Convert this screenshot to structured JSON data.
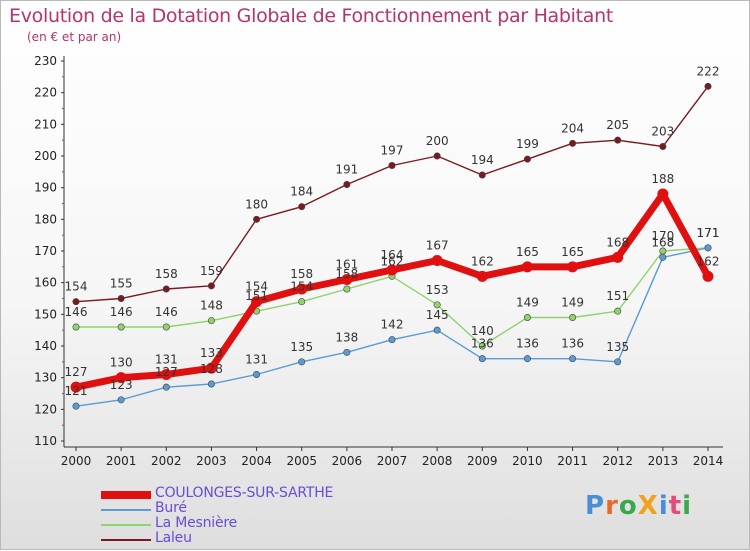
{
  "header": {
    "title": "Evolution de la Dotation Globale de Fonctionnement par Habitant",
    "subtitle": "(en € et par an)"
  },
  "colors": {
    "title": "#b5336f",
    "legend_text": "#6a4cd6",
    "coulonges": "#e01010",
    "bure": "#5b9bd5",
    "lamesniere": "#8ed36b",
    "laleu": "#7b1a1e"
  },
  "logo": {
    "letters": [
      {
        "ch": "P",
        "color": "#4a8ed8"
      },
      {
        "ch": "r",
        "color": "#e86a2b"
      },
      {
        "ch": "o",
        "color": "#3aa84e"
      },
      {
        "ch": "X",
        "color": "#f2a11b"
      },
      {
        "ch": "i",
        "color": "#4a8ed8"
      },
      {
        "ch": "t",
        "color": "#e04f7a"
      },
      {
        "ch": "i",
        "color": "#3aa84e"
      }
    ]
  },
  "chart_data": {
    "type": "line",
    "title": "Evolution de la Dotation Globale de Fonctionnement par Habitant",
    "subtitle": "(en € et par an)",
    "x": [
      "2000",
      "2001",
      "2002",
      "2003",
      "2004",
      "2005",
      "2006",
      "2007",
      "2008",
      "2009",
      "2010",
      "2011",
      "2012",
      "2013",
      "2014"
    ],
    "ylim": [
      110,
      230
    ],
    "yticks": [
      110,
      120,
      130,
      140,
      150,
      160,
      170,
      180,
      190,
      200,
      210,
      220,
      230
    ],
    "grid": false,
    "legend_position": "bottom-left",
    "series": [
      {
        "name": "COULONGES-SUR-SARTHE",
        "color": "#e01010",
        "values": [
          127,
          130,
          131,
          133,
          154,
          158,
          161,
          164,
          167,
          162,
          165,
          165,
          168,
          188,
          162
        ]
      },
      {
        "name": "Buré",
        "color": "#5b9bd5",
        "values": [
          121,
          123,
          127,
          128,
          131,
          135,
          138,
          142,
          145,
          136,
          136,
          136,
          135,
          168,
          171
        ]
      },
      {
        "name": "La Mesnière",
        "color": "#8ed36b",
        "values": [
          146,
          146,
          146,
          148,
          151,
          154,
          158,
          162,
          153,
          140,
          149,
          149,
          151,
          170,
          171
        ]
      },
      {
        "name": "Laleu",
        "color": "#7b1a1e",
        "values": [
          154,
          155,
          158,
          159,
          180,
          184,
          191,
          197,
          200,
          194,
          199,
          204,
          205,
          203,
          222
        ]
      }
    ]
  }
}
